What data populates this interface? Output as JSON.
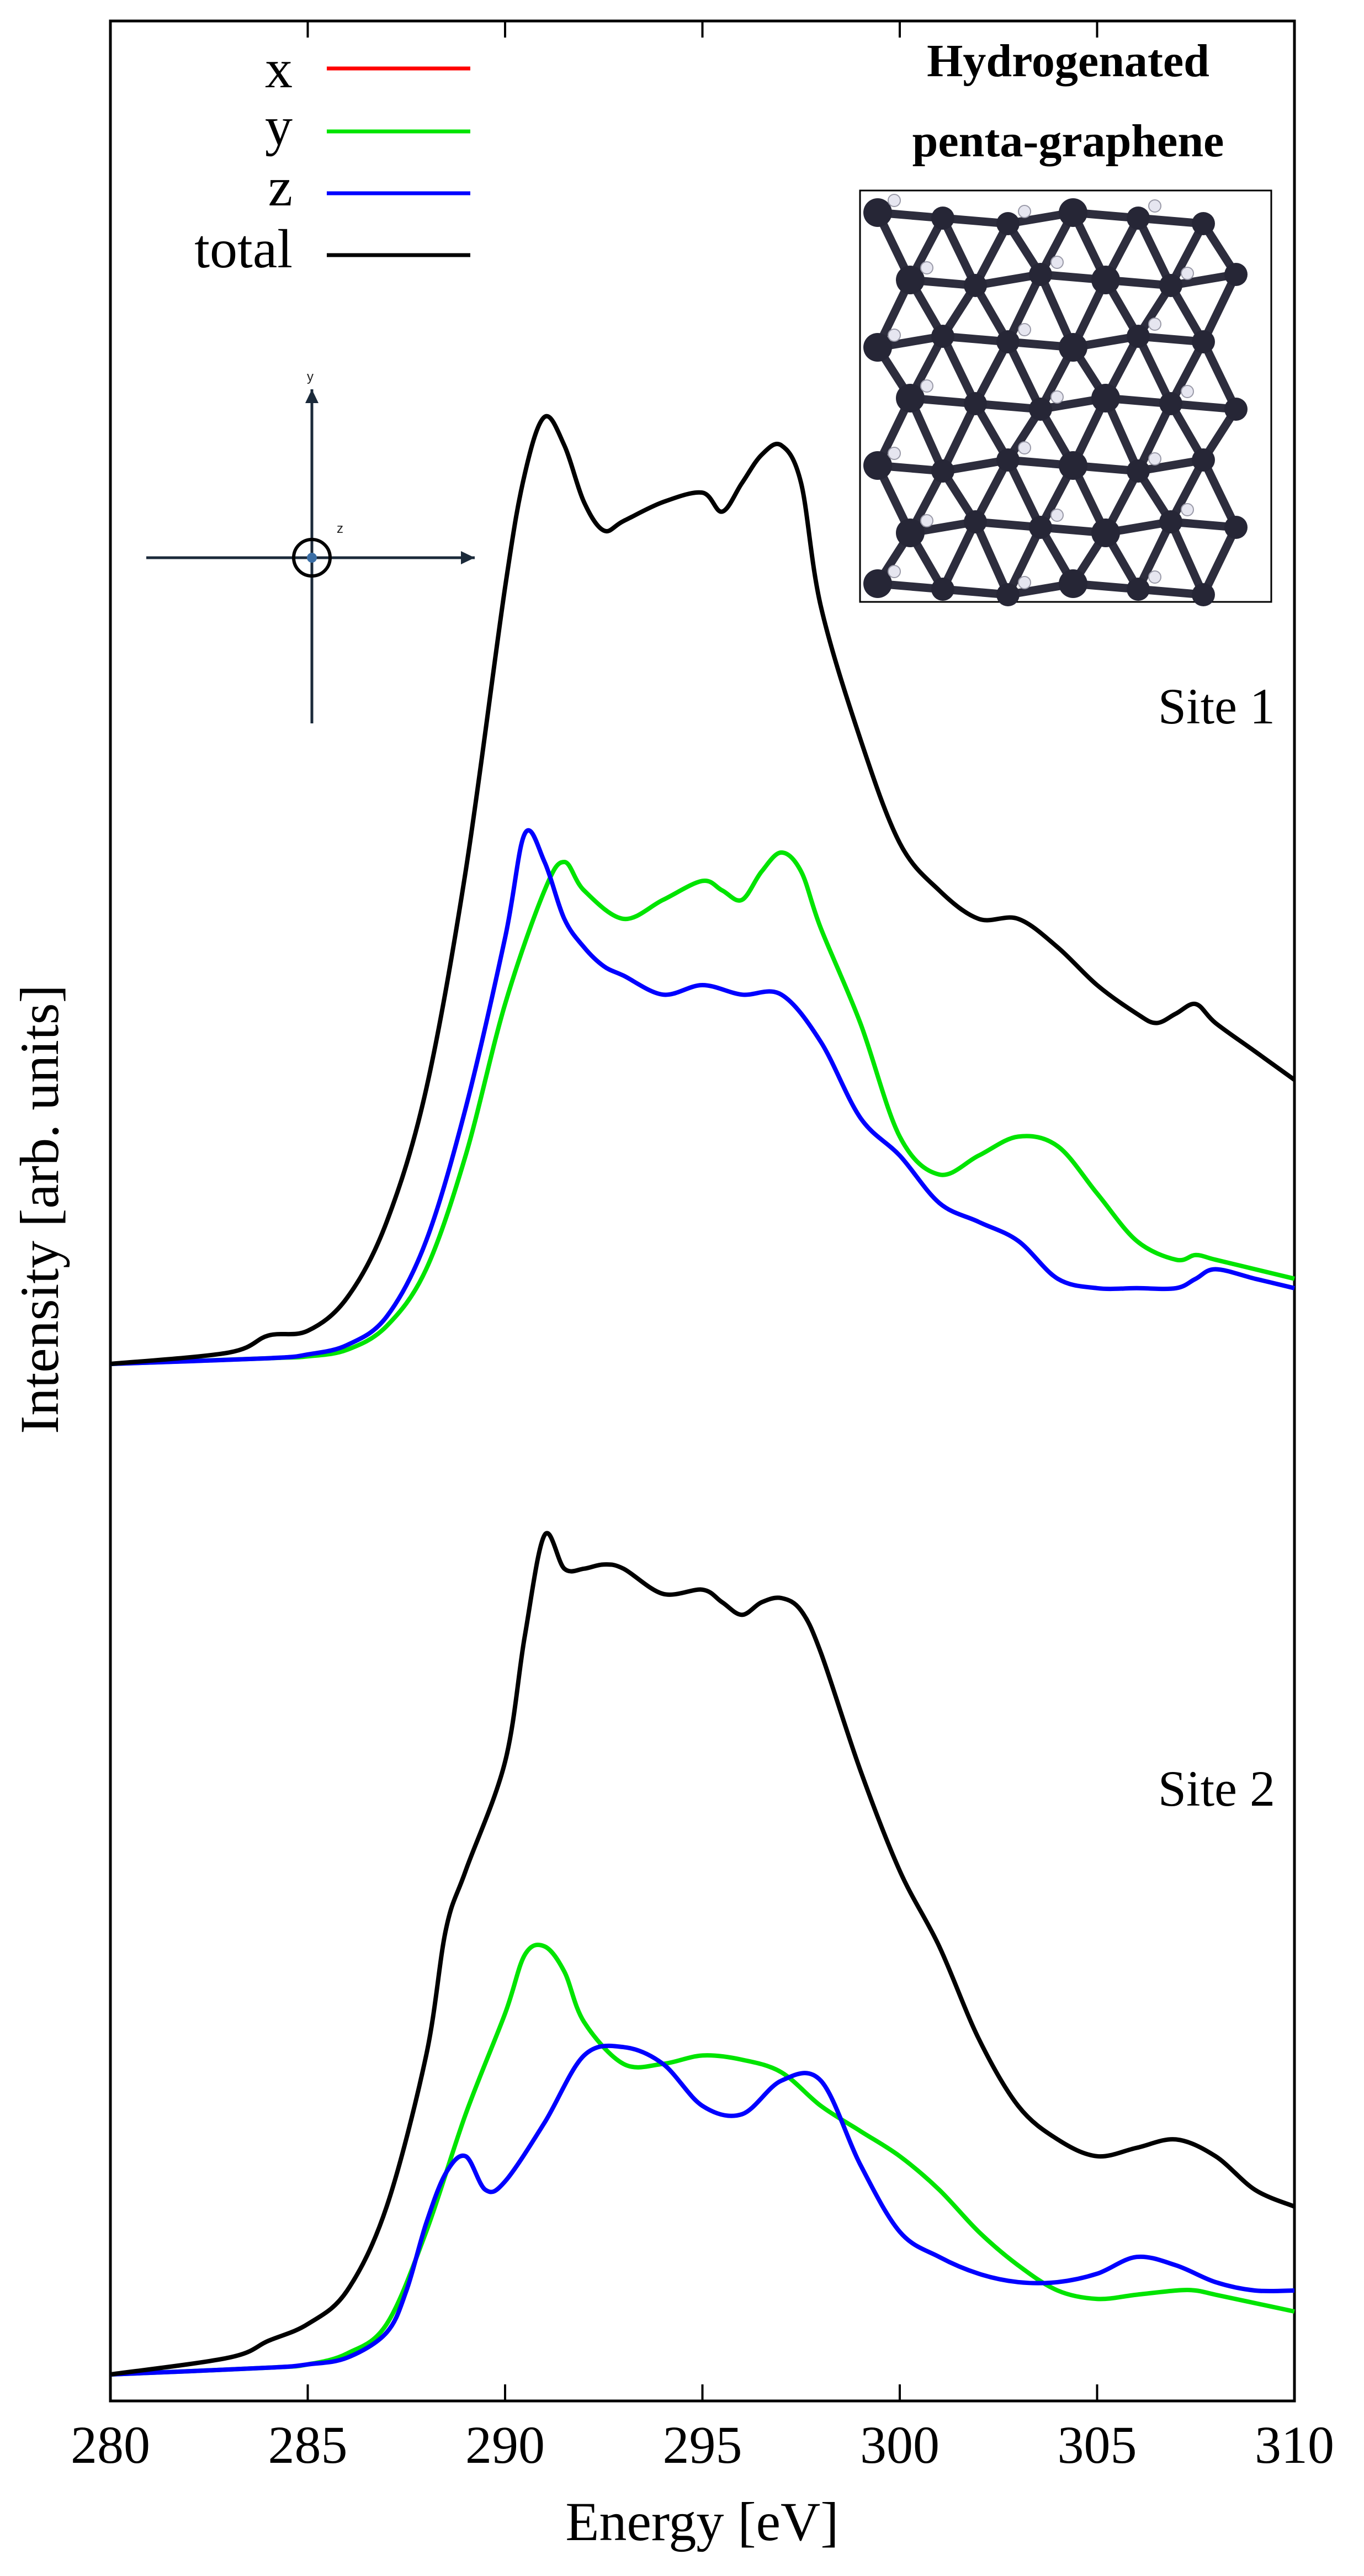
{
  "chart_data": {
    "type": "line",
    "xlabel": "Energy [eV]",
    "ylabel": "Intensity [arb. units]",
    "xlim": [
      280,
      310
    ],
    "x_ticks": [
      280,
      285,
      290,
      295,
      300,
      305,
      310
    ],
    "y_ticks": "none",
    "grid": false,
    "legend_position": "top-left",
    "legend": [
      {
        "name": "x",
        "color": "#ff0000"
      },
      {
        "name": "y",
        "color": "#00e400"
      },
      {
        "name": "z",
        "color": "#0000ff"
      },
      {
        "name": "total",
        "color": "#000000"
      }
    ],
    "inset_title": [
      "Hydrogenated",
      "penta-graphene"
    ],
    "axes_icon_labels": [
      "y",
      "z"
    ],
    "panels": [
      {
        "label": "Site 1",
        "series": [
          {
            "name": "total",
            "color": "#000000",
            "x": [
              280,
              283,
              284,
              285,
              286,
              287,
              288,
              289,
              290,
              290.5,
              291,
              291.5,
              292,
              292.5,
              293,
              294,
              295,
              295.5,
              296,
              296.5,
              297,
              297.5,
              298,
              299,
              300,
              301,
              302,
              303,
              304,
              305,
              306,
              306.5,
              307,
              307.5,
              308,
              309,
              310
            ],
            "y": [
              0.0,
              0.012,
              0.03,
              0.035,
              0.07,
              0.15,
              0.29,
              0.52,
              0.82,
              0.94,
              1.0,
              0.97,
              0.91,
              0.88,
              0.89,
              0.91,
              0.92,
              0.9,
              0.93,
              0.96,
              0.97,
              0.93,
              0.8,
              0.66,
              0.55,
              0.5,
              0.47,
              0.47,
              0.44,
              0.4,
              0.37,
              0.36,
              0.37,
              0.38,
              0.36,
              0.33,
              0.3
            ]
          },
          {
            "name": "y",
            "color": "#00e400",
            "x": [
              280,
              284,
              285,
              286,
              287,
              288,
              289,
              290,
              291,
              291.5,
              292,
              293,
              294,
              295,
              295.5,
              296,
              296.5,
              297,
              297.5,
              298,
              299,
              300,
              301,
              302,
              303,
              304,
              305,
              306,
              307,
              307.5,
              308,
              309,
              310
            ],
            "y": [
              0.0,
              0.006,
              0.008,
              0.015,
              0.04,
              0.1,
              0.22,
              0.38,
              0.5,
              0.53,
              0.5,
              0.47,
              0.49,
              0.51,
              0.5,
              0.49,
              0.52,
              0.54,
              0.52,
              0.46,
              0.36,
              0.24,
              0.2,
              0.22,
              0.24,
              0.23,
              0.18,
              0.13,
              0.11,
              0.115,
              0.11,
              0.1,
              0.09
            ]
          },
          {
            "name": "z",
            "color": "#0000ff",
            "x": [
              280,
              284,
              285,
              286,
              287,
              288,
              289,
              290,
              290.5,
              291,
              291.5,
              292,
              292.5,
              293,
              294,
              295,
              296,
              297,
              298,
              299,
              300,
              301,
              302,
              303,
              304,
              305,
              306,
              307,
              307.5,
              308,
              309,
              310
            ],
            "y": [
              0.0,
              0.006,
              0.01,
              0.02,
              0.05,
              0.13,
              0.27,
              0.45,
              0.56,
              0.53,
              0.47,
              0.44,
              0.42,
              0.41,
              0.39,
              0.4,
              0.39,
              0.39,
              0.34,
              0.26,
              0.22,
              0.17,
              0.15,
              0.13,
              0.09,
              0.08,
              0.08,
              0.08,
              0.09,
              0.1,
              0.09,
              0.08
            ]
          }
        ]
      },
      {
        "label": "Site 2",
        "series": [
          {
            "name": "total",
            "color": "#000000",
            "x": [
              280,
              283,
              284,
              285,
              286,
              287,
              288,
              288.5,
              289,
              290,
              290.5,
              291,
              291.5,
              292,
              292.5,
              293,
              294,
              295,
              295.5,
              296,
              296.5,
              297,
              297.5,
              298,
              299,
              300,
              301,
              302,
              303,
              304,
              305,
              306,
              307,
              308,
              309,
              310
            ],
            "y": [
              0.0,
              0.02,
              0.04,
              0.06,
              0.1,
              0.2,
              0.38,
              0.53,
              0.6,
              0.73,
              0.88,
              1.0,
              0.96,
              0.96,
              0.965,
              0.96,
              0.93,
              0.935,
              0.92,
              0.905,
              0.92,
              0.925,
              0.91,
              0.86,
              0.72,
              0.6,
              0.51,
              0.4,
              0.32,
              0.28,
              0.26,
              0.27,
              0.28,
              0.26,
              0.22,
              0.2
            ]
          },
          {
            "name": "y",
            "color": "#00e400",
            "x": [
              280,
              284,
              285,
              286,
              287,
              288,
              289,
              290,
              290.5,
              291,
              291.5,
              292,
              293,
              294,
              295,
              296,
              297,
              298,
              299,
              300,
              301,
              302,
              303,
              304,
              305,
              306,
              307,
              307.5,
              308,
              309,
              310
            ],
            "y": [
              0.0,
              0.008,
              0.012,
              0.025,
              0.06,
              0.17,
              0.31,
              0.43,
              0.5,
              0.51,
              0.48,
              0.42,
              0.37,
              0.37,
              0.38,
              0.375,
              0.36,
              0.32,
              0.29,
              0.26,
              0.22,
              0.17,
              0.13,
              0.1,
              0.09,
              0.095,
              0.1,
              0.1,
              0.095,
              0.085,
              0.075
            ]
          },
          {
            "name": "z",
            "color": "#0000ff",
            "x": [
              280,
              284,
              285,
              286,
              287,
              287.5,
              288,
              288.5,
              289,
              289.5,
              290,
              291,
              292,
              293,
              294,
              295,
              296,
              297,
              298,
              299,
              300,
              301,
              302,
              303,
              304,
              305,
              306,
              307,
              308,
              309,
              310
            ],
            "y": [
              0.0,
              0.008,
              0.012,
              0.02,
              0.05,
              0.1,
              0.18,
              0.24,
              0.26,
              0.22,
              0.23,
              0.3,
              0.38,
              0.39,
              0.37,
              0.32,
              0.31,
              0.35,
              0.35,
              0.25,
              0.17,
              0.14,
              0.12,
              0.11,
              0.11,
              0.12,
              0.14,
              0.13,
              0.11,
              0.1,
              0.1
            ]
          }
        ]
      }
    ]
  }
}
